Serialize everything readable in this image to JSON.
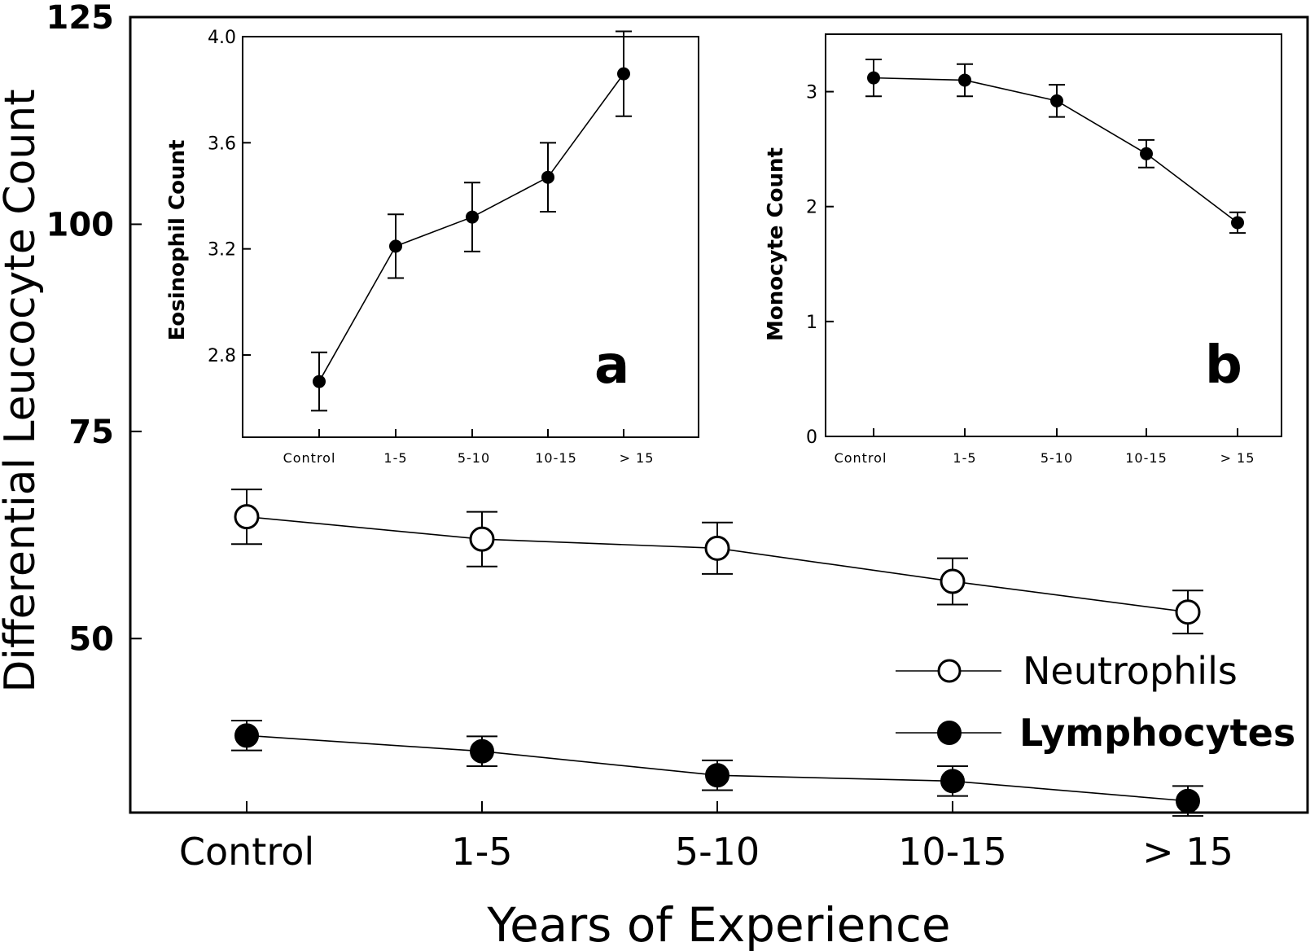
{
  "chart_data": [
    {
      "id": "main",
      "type": "line",
      "xlabel": "Years of Experience",
      "ylabel": "Differential Leucocyte Count",
      "categories": [
        "Control",
        "1-5",
        "5-10",
        "10-15",
        "> 15"
      ],
      "ylim": [
        29,
        125
      ],
      "yticks": [
        50,
        75,
        100,
        125
      ],
      "grid": false,
      "legend_position": "bottom-right",
      "series": [
        {
          "name": "Neutrophils",
          "marker": "open-circle",
          "values": [
            64.7,
            62,
            60.9,
            56.9,
            53.2
          ],
          "errors": [
            3.3,
            3.3,
            3.1,
            2.8,
            2.6
          ]
        },
        {
          "name": "Lymphocytes",
          "marker": "filled-circle",
          "values": [
            38.3,
            36.4,
            33.5,
            32.8,
            30.4
          ],
          "errors": [
            1.8,
            1.8,
            1.8,
            1.8,
            1.8
          ]
        }
      ]
    },
    {
      "id": "inset-a",
      "type": "line",
      "panel_label": "a",
      "xlabel": "",
      "ylabel": "Eosinophil Count",
      "categories": [
        "Control",
        "1-5",
        "5-10",
        "10-15",
        "> 15"
      ],
      "ylim": [
        2.49,
        4.0
      ],
      "yticks": [
        2.8,
        3.2,
        3.6,
        4.0
      ],
      "ytick_labels": [
        "2.8",
        "3.2",
        "3.6",
        "4.0"
      ],
      "grid": false,
      "series": [
        {
          "values": [
            2.7,
            3.21,
            3.32,
            3.47,
            3.86
          ],
          "errors": [
            0.11,
            0.12,
            0.13,
            0.13,
            0.16
          ]
        }
      ]
    },
    {
      "id": "inset-b",
      "type": "line",
      "panel_label": "b",
      "xlabel": "",
      "ylabel": "Monocyte Count",
      "categories": [
        "Control",
        "1-5",
        "5-10",
        "10-15",
        "> 15"
      ],
      "ylim": [
        0,
        3.5
      ],
      "yticks": [
        0,
        1,
        2,
        3
      ],
      "ytick_labels": [
        "0",
        "1",
        "2",
        "3"
      ],
      "grid": false,
      "series": [
        {
          "values": [
            3.12,
            3.1,
            2.92,
            2.46,
            1.86
          ],
          "errors": [
            0.16,
            0.14,
            0.14,
            0.12,
            0.09
          ]
        }
      ]
    }
  ]
}
